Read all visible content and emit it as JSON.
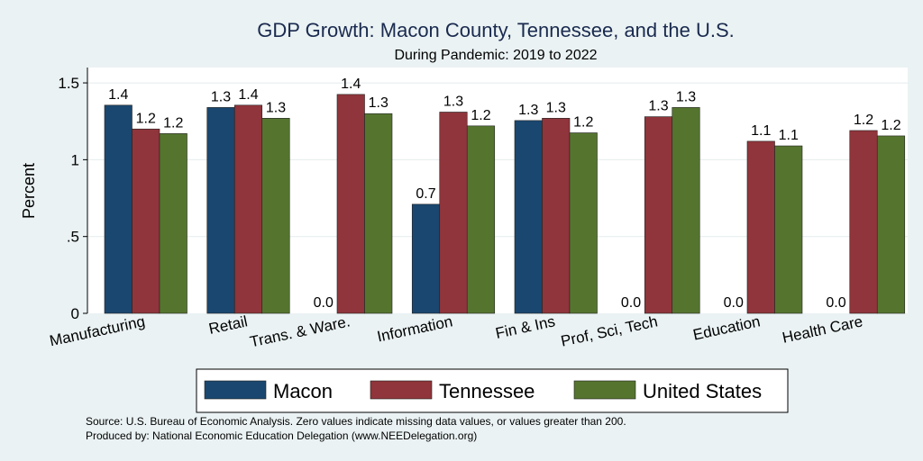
{
  "chart_data": {
    "type": "bar",
    "title": "GDP Growth: Macon County, Tennessee, and the U.S.",
    "subtitle": "During Pandemic: 2019 to 2022",
    "ylabel": "Percent",
    "xlabel": "",
    "ylim": [
      0,
      1.6
    ],
    "yticks": [
      {
        "value": 0,
        "label": "0"
      },
      {
        "value": 0.5,
        "label": ".5"
      },
      {
        "value": 1,
        "label": "1"
      },
      {
        "value": 1.5,
        "label": "1.5"
      }
    ],
    "grid": true,
    "legend_position": "bottom",
    "categories": [
      "Manufacturing",
      "Retail",
      "Trans. & Ware.",
      "Information",
      "Fin & Ins",
      "Prof, Sci, Tech",
      "Education",
      "Health Care"
    ],
    "series": [
      {
        "name": "Macon",
        "color": "#1a476f",
        "values": [
          1.355,
          1.34,
          0,
          0.71,
          1.255,
          0,
          0,
          0
        ],
        "labels": [
          "1.4",
          "1.3",
          "0.0",
          "0.7",
          "1.3",
          "0.0",
          "0.0",
          "0.0"
        ]
      },
      {
        "name": "Tennessee",
        "color": "#90353b",
        "values": [
          1.2,
          1.355,
          1.425,
          1.31,
          1.27,
          1.28,
          1.12,
          1.19
        ],
        "labels": [
          "1.2",
          "1.4",
          "1.4",
          "1.3",
          "1.3",
          "1.3",
          "1.1",
          "1.2"
        ]
      },
      {
        "name": "United States",
        "color": "#55752f",
        "values": [
          1.17,
          1.27,
          1.3,
          1.22,
          1.175,
          1.34,
          1.09,
          1.155
        ],
        "labels": [
          "1.2",
          "1.3",
          "1.3",
          "1.2",
          "1.2",
          "1.3",
          "1.1",
          "1.2"
        ]
      }
    ]
  },
  "notes": {
    "source": "Source: U.S. Bureau of Economic Analysis. Zero values indicate missing data values, or values greater than 200.",
    "produced_by": "Produced by: National Economic Education Delegation (www.NEEDelegation.org)"
  }
}
